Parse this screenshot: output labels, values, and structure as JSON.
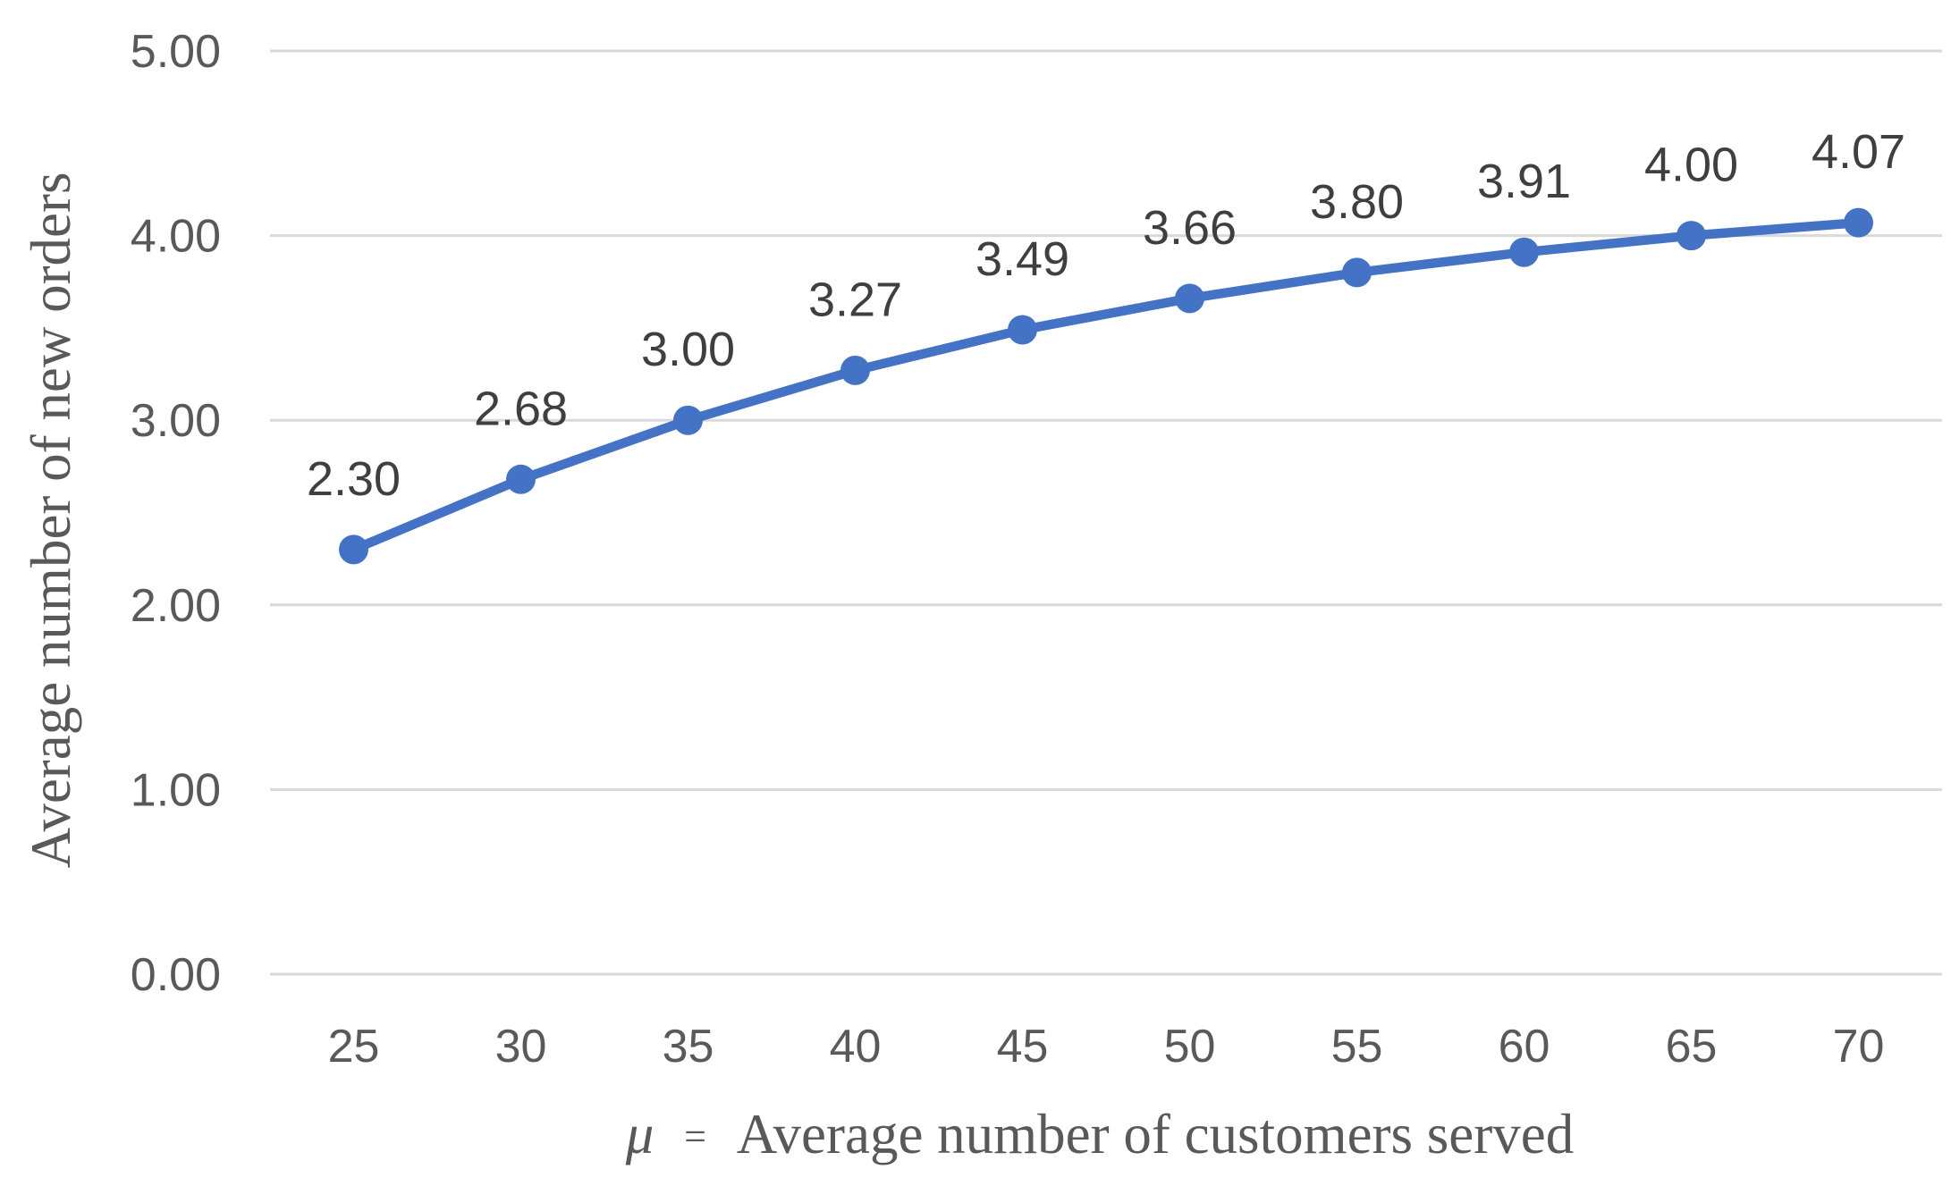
{
  "chart": {
    "y_axis_title": "Average number of new orders",
    "x_axis_title": {
      "mu": "μ",
      "equals": "=",
      "text": "Average number of customers served"
    },
    "colors": {
      "line": "#4472C4",
      "marker": "#4472C4",
      "gridline": "#D9D9D9",
      "tick_label": "#595959",
      "data_label": "#3f3f3f",
      "axis_title": "#595959",
      "background": "#ffffff"
    }
  },
  "chart_data": {
    "type": "line",
    "categories": [
      25,
      30,
      35,
      40,
      45,
      50,
      55,
      60,
      65,
      70
    ],
    "values": [
      2.3,
      2.68,
      3.0,
      3.27,
      3.49,
      3.66,
      3.8,
      3.91,
      4.0,
      4.07
    ],
    "data_labels": [
      "2.30",
      "2.68",
      "3.00",
      "3.27",
      "3.49",
      "3.66",
      "3.80",
      "3.91",
      "4.00",
      "4.07"
    ],
    "x_tick_labels": [
      "25",
      "30",
      "35",
      "40",
      "45",
      "50",
      "55",
      "60",
      "65",
      "70"
    ],
    "y_tick_labels": [
      "0.00",
      "1.00",
      "2.00",
      "3.00",
      "4.00",
      "5.00"
    ],
    "y_tick_values": [
      0,
      1,
      2,
      3,
      4,
      5
    ],
    "title": "",
    "xlabel": "μ = Average number of customers served",
    "ylabel": "Average number of new orders",
    "ylim": [
      0,
      5
    ],
    "grid": "horizontal",
    "legend": "none",
    "marker": "circle"
  }
}
